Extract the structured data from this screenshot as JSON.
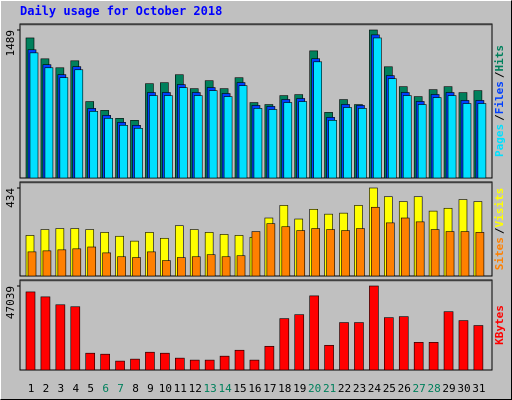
{
  "chart_data": [
    {
      "type": "bar",
      "title": "Daily usage for October 2018",
      "legend_separator": "/",
      "ylim": [
        0,
        1489
      ],
      "yticks": [
        1489
      ],
      "series": [
        {
          "name": "Hits",
          "color": "#00805c",
          "values": [
            1409,
            1199,
            1109,
            1179,
            769,
            680,
            600,
            580,
            949,
            959,
            1039,
            899,
            979,
            899,
            1009,
            759,
            739,
            829,
            839,
            1279,
            660,
            789,
            739,
            1489,
            1119,
            919,
            819,
            889,
            919,
            859,
            879
          ]
        },
        {
          "name": "Files",
          "color": "#0040ff",
          "values": [
            1290,
            1140,
            1040,
            1120,
            700,
            630,
            560,
            530,
            860,
            860,
            940,
            860,
            910,
            850,
            960,
            730,
            720,
            790,
            800,
            1200,
            610,
            740,
            730,
            1440,
            1030,
            860,
            770,
            840,
            860,
            780,
            780
          ]
        },
        {
          "name": "Pages",
          "color": "#00e0ff",
          "values": [
            1259,
            1109,
            1009,
            1089,
            670,
            600,
            530,
            500,
            829,
            829,
            909,
            829,
            879,
            819,
            929,
            700,
            689,
            759,
            769,
            1169,
            580,
            709,
            700,
            1409,
            999,
            829,
            739,
            809,
            829,
            749,
            749
          ]
        }
      ]
    },
    {
      "type": "bar",
      "legend_separator": "/",
      "ylim": [
        0,
        434
      ],
      "yticks": [
        434
      ],
      "series": [
        {
          "name": "Visits",
          "color": "#ffff00",
          "values": [
            200,
            229,
            234,
            234,
            229,
            215,
            196,
            172,
            215,
            186,
            248,
            229,
            215,
            205,
            200,
            191,
            286,
            348,
            281,
            329,
            305,
            310,
            348,
            434,
            391,
            367,
            391,
            320,
            334,
            377,
            367
          ]
        },
        {
          "name": "Sites",
          "color": "#ff8000",
          "values": [
            119,
            124,
            129,
            134,
            143,
            114,
            95,
            91,
            119,
            76,
            91,
            95,
            105,
            95,
            100,
            219,
            258,
            243,
            224,
            234,
            229,
            224,
            234,
            339,
            262,
            286,
            267,
            229,
            219,
            219,
            215
          ]
        }
      ]
    },
    {
      "type": "bar",
      "ylim": [
        0,
        47039
      ],
      "yticks": [
        47039
      ],
      "categories": [
        "1",
        "2",
        "3",
        "4",
        "5",
        "6",
        "7",
        "8",
        "9",
        "10",
        "11",
        "12",
        "13",
        "14",
        "15",
        "16",
        "17",
        "18",
        "19",
        "20",
        "21",
        "22",
        "23",
        "24",
        "25",
        "26",
        "27",
        "28",
        "29",
        "30",
        "31"
      ],
      "category_colors": [
        "#000000",
        "#000000",
        "#000000",
        "#000000",
        "#000000",
        "#00805c",
        "#00805c",
        "#000000",
        "#000000",
        "#000000",
        "#000000",
        "#000000",
        "#00805c",
        "#00805c",
        "#000000",
        "#000000",
        "#000000",
        "#000000",
        "#000000",
        "#00805c",
        "#00805c",
        "#000000",
        "#000000",
        "#000000",
        "#000000",
        "#000000",
        "#00805c",
        "#00805c",
        "#000000",
        "#000000",
        "#000000"
      ],
      "series": [
        {
          "name": "KBytes",
          "color": "#ff0000",
          "values": [
            43719,
            40952,
            36525,
            35418,
            9408,
            8855,
            4981,
            6088,
            9961,
            9408,
            6641,
            5534,
            5534,
            7748,
            11068,
            5534,
            13281,
            28777,
            30990,
            41505,
            13835,
            26563,
            26563,
            47039,
            29330,
            29884,
            15495,
            15495,
            32650,
            27670,
            24903
          ]
        }
      ]
    }
  ]
}
